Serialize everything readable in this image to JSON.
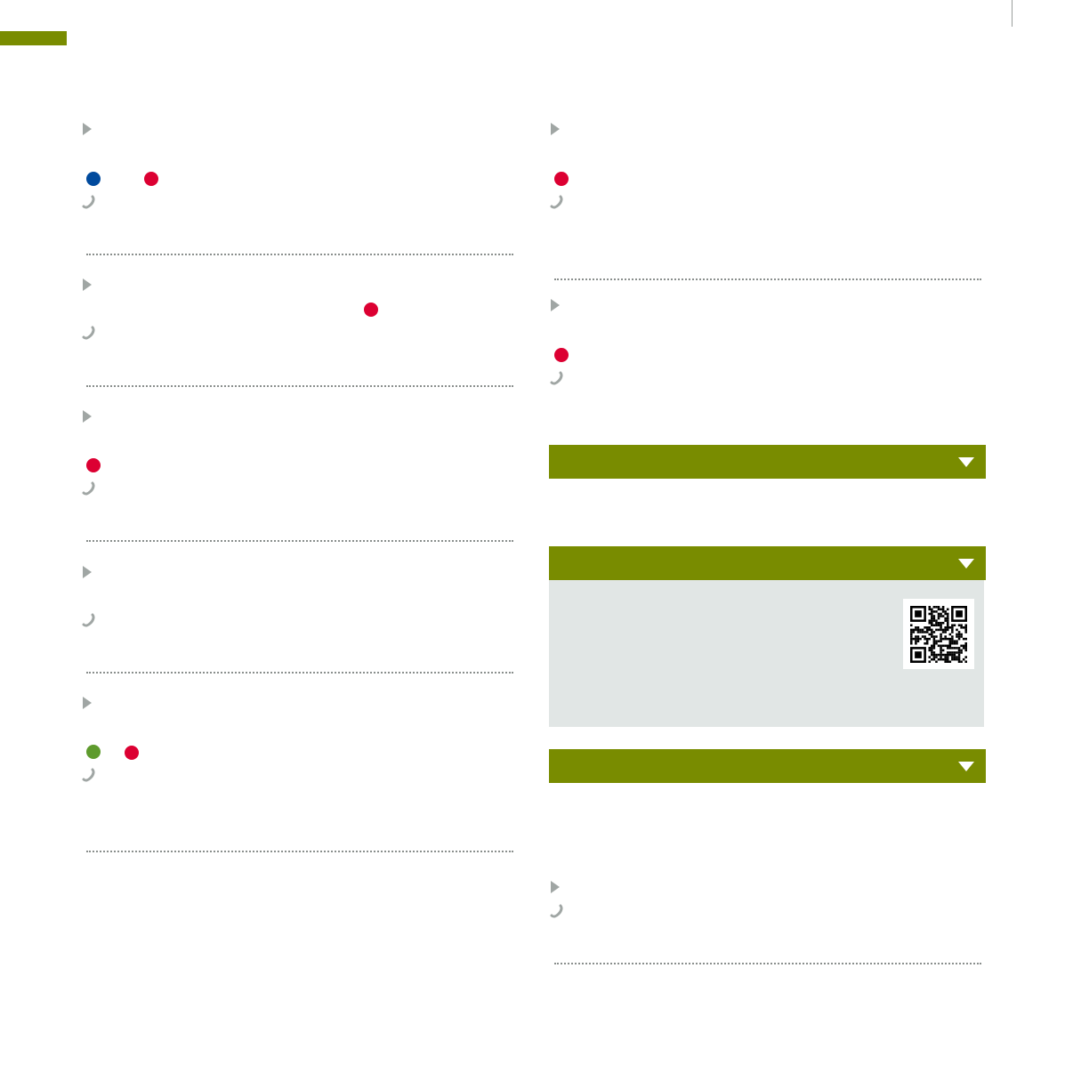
{
  "colors": {
    "accent": "#798c00",
    "red_dot": "#dc0032",
    "blue_dot": "#004a9d",
    "green_dot": "#5e9b2d",
    "icon_gray": "#a0a6a4",
    "panel": "#e1e6e5"
  },
  "left_entries": [
    {
      "dots": [
        "blue",
        "red"
      ]
    },
    {
      "dots": [
        "red"
      ]
    },
    {
      "dots": [
        "red"
      ]
    },
    {
      "dots": []
    },
    {
      "dots": [
        "green",
        "red"
      ]
    }
  ],
  "right_entries": [
    {
      "dots": [
        "red"
      ]
    },
    {
      "dots": [
        "red"
      ]
    },
    {
      "dots": []
    }
  ],
  "accordions": [
    {
      "state": "collapsed",
      "icon": "triangle-down-icon"
    },
    {
      "state": "expanded",
      "icon": "triangle-down-icon",
      "content": "qr-code"
    },
    {
      "state": "collapsed",
      "icon": "triangle-down-icon"
    }
  ]
}
